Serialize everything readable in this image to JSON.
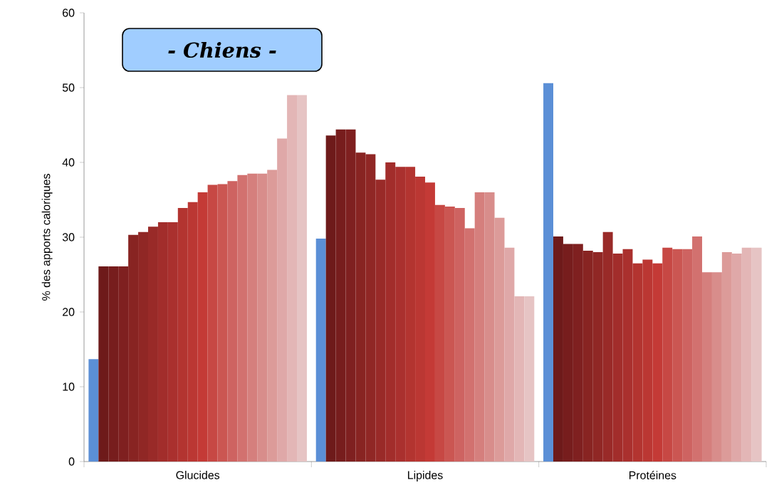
{
  "chart_data": {
    "type": "bar",
    "title": "- Chiens -",
    "ylabel": "% des apports caloriques",
    "categories": [
      "Glucides",
      "Lipides",
      "Protéines"
    ],
    "ylim": [
      0,
      60
    ],
    "yticks": [
      0,
      10,
      20,
      30,
      40,
      50,
      60
    ],
    "series": [
      {
        "color": "#5b8fd6",
        "values": [
          13.7,
          29.8,
          50.6
        ]
      },
      {
        "color": "#6e1a1a",
        "values": [
          26.1,
          43.6,
          30.1
        ]
      },
      {
        "color": "#771d1d",
        "values": [
          26.1,
          44.4,
          29.1
        ]
      },
      {
        "color": "#7f2020",
        "values": [
          26.1,
          44.4,
          29.1
        ]
      },
      {
        "color": "#882422",
        "values": [
          30.3,
          41.3,
          28.2
        ]
      },
      {
        "color": "#902725",
        "values": [
          30.7,
          41.1,
          28.0
        ]
      },
      {
        "color": "#992a28",
        "values": [
          31.4,
          37.7,
          30.7
        ]
      },
      {
        "color": "#a22d2b",
        "values": [
          32.0,
          40.0,
          27.8
        ]
      },
      {
        "color": "#aa302e",
        "values": [
          32.0,
          39.4,
          28.4
        ]
      },
      {
        "color": "#b33430",
        "values": [
          33.9,
          39.4,
          26.5
        ]
      },
      {
        "color": "#bb3733",
        "values": [
          34.7,
          38.1,
          27.0
        ]
      },
      {
        "color": "#c43a36",
        "values": [
          36.0,
          37.3,
          26.5
        ]
      },
      {
        "color": "#c74844",
        "values": [
          37.0,
          34.3,
          28.6
        ]
      },
      {
        "color": "#cb5652",
        "values": [
          37.1,
          34.1,
          28.4
        ]
      },
      {
        "color": "#ce6361",
        "values": [
          37.5,
          33.9,
          28.4
        ]
      },
      {
        "color": "#d2716f",
        "values": [
          38.3,
          31.2,
          30.1
        ]
      },
      {
        "color": "#d57f7d",
        "values": [
          38.5,
          36.0,
          25.3
        ]
      },
      {
        "color": "#d88d8b",
        "values": [
          38.5,
          36.0,
          25.3
        ]
      },
      {
        "color": "#dc9b99",
        "values": [
          39.0,
          32.6,
          28.0
        ]
      },
      {
        "color": "#dfa8a8",
        "values": [
          43.2,
          28.6,
          27.8
        ]
      },
      {
        "color": "#e3b6b6",
        "values": [
          49.0,
          22.1,
          28.6
        ]
      },
      {
        "color": "#e6c4c4",
        "values": [
          49.0,
          22.1,
          28.6
        ]
      }
    ]
  }
}
